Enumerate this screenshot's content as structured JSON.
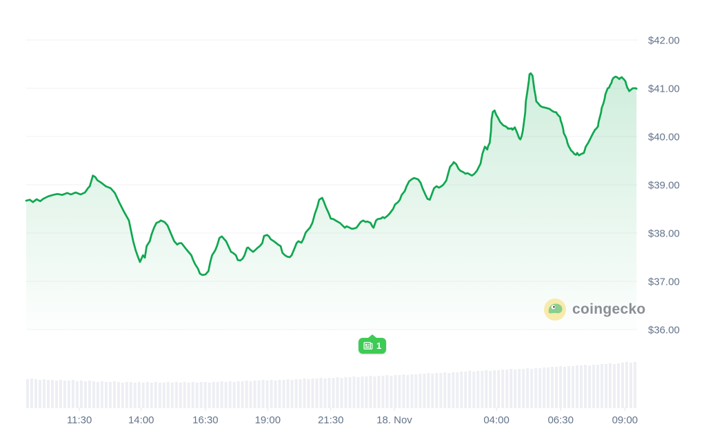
{
  "page": {
    "background": "#ffffff"
  },
  "watermark": {
    "label": "coingecko",
    "icon": "gecko-icon",
    "text_color": "#8b8e96",
    "circle_color": "#f7eaab",
    "gecko_color": "#8bce8d"
  },
  "annotation_badge": {
    "count": "1",
    "icon": "news-icon",
    "color": "#3ecb55"
  },
  "chart_data": {
    "type": "line",
    "subtype": "area",
    "currency": "USD",
    "grid": true,
    "line_color": "#10a750",
    "fill_color_top": "rgba(16,167,80,0.20)",
    "fill_color_bottom": "rgba(16,167,80,0.01)",
    "grid_color": "#f1f2f5",
    "axis_text_color": "#64748b",
    "tick_mark_color": "#e3e6ec",
    "y_axis": {
      "side": "right",
      "range": [
        36,
        42
      ],
      "ticks": [
        {
          "label": "$42.00",
          "value": 42
        },
        {
          "label": "$41.00",
          "value": 41
        },
        {
          "label": "$40.00",
          "value": 40
        },
        {
          "label": "$39.00",
          "value": 39
        },
        {
          "label": "$38.00",
          "value": 38
        },
        {
          "label": "$37.00",
          "value": 37
        },
        {
          "label": "$36.00",
          "value": 36
        }
      ]
    },
    "x_axis": {
      "ticks": [
        {
          "label": "11:30",
          "f": 0.087
        },
        {
          "label": "14:00",
          "f": 0.188
        },
        {
          "label": "16:30",
          "f": 0.293
        },
        {
          "label": "19:00",
          "f": 0.395
        },
        {
          "label": "21:30",
          "f": 0.498
        },
        {
          "label": "18. Nov",
          "f": 0.602
        },
        {
          "label": "04:00",
          "f": 0.769
        },
        {
          "label": "06:30",
          "f": 0.874
        },
        {
          "label": "09:00",
          "f": 0.979
        }
      ]
    },
    "price_series": [
      [
        0.0,
        38.67
      ],
      [
        0.006,
        38.69
      ],
      [
        0.011,
        38.64
      ],
      [
        0.017,
        38.7
      ],
      [
        0.023,
        38.66
      ],
      [
        0.028,
        38.71
      ],
      [
        0.036,
        38.76
      ],
      [
        0.044,
        38.79
      ],
      [
        0.051,
        38.81
      ],
      [
        0.059,
        38.79
      ],
      [
        0.067,
        38.83
      ],
      [
        0.073,
        38.8
      ],
      [
        0.081,
        38.84
      ],
      [
        0.089,
        38.8
      ],
      [
        0.096,
        38.84
      ],
      [
        0.101,
        38.93
      ],
      [
        0.104,
        38.97
      ],
      [
        0.107,
        39.1
      ],
      [
        0.109,
        39.19
      ],
      [
        0.113,
        39.16
      ],
      [
        0.116,
        39.1
      ],
      [
        0.118,
        39.08
      ],
      [
        0.123,
        39.04
      ],
      [
        0.13,
        38.97
      ],
      [
        0.138,
        38.93
      ],
      [
        0.145,
        38.83
      ],
      [
        0.152,
        38.64
      ],
      [
        0.16,
        38.44
      ],
      [
        0.168,
        38.26
      ],
      [
        0.171,
        38.07
      ],
      [
        0.175,
        37.83
      ],
      [
        0.179,
        37.64
      ],
      [
        0.183,
        37.5
      ],
      [
        0.186,
        37.4
      ],
      [
        0.191,
        37.54
      ],
      [
        0.194,
        37.49
      ],
      [
        0.197,
        37.73
      ],
      [
        0.202,
        37.83
      ],
      [
        0.205,
        37.97
      ],
      [
        0.209,
        38.11
      ],
      [
        0.213,
        38.21
      ],
      [
        0.217,
        38.23
      ],
      [
        0.22,
        38.26
      ],
      [
        0.226,
        38.23
      ],
      [
        0.231,
        38.16
      ],
      [
        0.236,
        38.01
      ],
      [
        0.242,
        37.83
      ],
      [
        0.247,
        37.76
      ],
      [
        0.25,
        37.79
      ],
      [
        0.254,
        37.79
      ],
      [
        0.262,
        37.66
      ],
      [
        0.27,
        37.54
      ],
      [
        0.273,
        37.44
      ],
      [
        0.276,
        37.36
      ],
      [
        0.281,
        37.26
      ],
      [
        0.284,
        37.16
      ],
      [
        0.288,
        37.13
      ],
      [
        0.293,
        37.14
      ],
      [
        0.298,
        37.21
      ],
      [
        0.301,
        37.4
      ],
      [
        0.304,
        37.54
      ],
      [
        0.309,
        37.64
      ],
      [
        0.312,
        37.73
      ],
      [
        0.316,
        37.9
      ],
      [
        0.32,
        37.93
      ],
      [
        0.324,
        37.87
      ],
      [
        0.327,
        37.83
      ],
      [
        0.332,
        37.69
      ],
      [
        0.335,
        37.61
      ],
      [
        0.338,
        37.59
      ],
      [
        0.343,
        37.54
      ],
      [
        0.346,
        37.44
      ],
      [
        0.35,
        37.43
      ],
      [
        0.354,
        37.47
      ],
      [
        0.357,
        37.54
      ],
      [
        0.361,
        37.69
      ],
      [
        0.363,
        37.7
      ],
      [
        0.366,
        37.66
      ],
      [
        0.371,
        37.61
      ],
      [
        0.374,
        37.64
      ],
      [
        0.378,
        37.69
      ],
      [
        0.382,
        37.73
      ],
      [
        0.386,
        37.79
      ],
      [
        0.389,
        37.94
      ],
      [
        0.394,
        37.96
      ],
      [
        0.397,
        37.93
      ],
      [
        0.4,
        37.87
      ],
      [
        0.405,
        37.83
      ],
      [
        0.408,
        37.8
      ],
      [
        0.412,
        37.76
      ],
      [
        0.416,
        37.73
      ],
      [
        0.419,
        37.59
      ],
      [
        0.423,
        37.54
      ],
      [
        0.427,
        37.51
      ],
      [
        0.431,
        37.5
      ],
      [
        0.434,
        37.54
      ],
      [
        0.439,
        37.69
      ],
      [
        0.442,
        37.79
      ],
      [
        0.445,
        37.83
      ],
      [
        0.45,
        37.8
      ],
      [
        0.453,
        37.87
      ],
      [
        0.457,
        38.01
      ],
      [
        0.461,
        38.07
      ],
      [
        0.464,
        38.11
      ],
      [
        0.468,
        38.21
      ],
      [
        0.472,
        38.4
      ],
      [
        0.476,
        38.54
      ],
      [
        0.479,
        38.69
      ],
      [
        0.484,
        38.73
      ],
      [
        0.487,
        38.64
      ],
      [
        0.49,
        38.54
      ],
      [
        0.495,
        38.4
      ],
      [
        0.498,
        38.3
      ],
      [
        0.502,
        38.29
      ],
      [
        0.506,
        38.26
      ],
      [
        0.51,
        38.23
      ],
      [
        0.513,
        38.21
      ],
      [
        0.517,
        38.16
      ],
      [
        0.521,
        38.11
      ],
      [
        0.524,
        38.14
      ],
      [
        0.529,
        38.11
      ],
      [
        0.532,
        38.09
      ],
      [
        0.535,
        38.09
      ],
      [
        0.54,
        38.11
      ],
      [
        0.543,
        38.16
      ],
      [
        0.547,
        38.23
      ],
      [
        0.551,
        38.26
      ],
      [
        0.555,
        38.23
      ],
      [
        0.558,
        38.24
      ],
      [
        0.563,
        38.21
      ],
      [
        0.566,
        38.14
      ],
      [
        0.568,
        38.11
      ],
      [
        0.572,
        38.26
      ],
      [
        0.575,
        38.29
      ],
      [
        0.58,
        38.3
      ],
      [
        0.583,
        38.33
      ],
      [
        0.586,
        38.31
      ],
      [
        0.591,
        38.36
      ],
      [
        0.594,
        38.4
      ],
      [
        0.6,
        38.5
      ],
      [
        0.603,
        38.59
      ],
      [
        0.608,
        38.64
      ],
      [
        0.611,
        38.69
      ],
      [
        0.614,
        38.79
      ],
      [
        0.619,
        38.87
      ],
      [
        0.622,
        38.97
      ],
      [
        0.626,
        39.07
      ],
      [
        0.63,
        39.11
      ],
      [
        0.634,
        39.14
      ],
      [
        0.637,
        39.13
      ],
      [
        0.641,
        39.11
      ],
      [
        0.645,
        39.04
      ],
      [
        0.648,
        38.93
      ],
      [
        0.653,
        38.79
      ],
      [
        0.656,
        38.71
      ],
      [
        0.66,
        38.69
      ],
      [
        0.664,
        38.83
      ],
      [
        0.667,
        38.93
      ],
      [
        0.671,
        38.97
      ],
      [
        0.675,
        38.94
      ],
      [
        0.679,
        38.97
      ],
      [
        0.682,
        39.0
      ],
      [
        0.687,
        39.09
      ],
      [
        0.69,
        39.23
      ],
      [
        0.693,
        39.37
      ],
      [
        0.698,
        39.44
      ],
      [
        0.699,
        39.47
      ],
      [
        0.703,
        39.43
      ],
      [
        0.707,
        39.33
      ],
      [
        0.71,
        39.29
      ],
      [
        0.715,
        39.26
      ],
      [
        0.718,
        39.23
      ],
      [
        0.722,
        39.24
      ],
      [
        0.726,
        39.21
      ],
      [
        0.729,
        39.19
      ],
      [
        0.733,
        39.23
      ],
      [
        0.737,
        39.29
      ],
      [
        0.743,
        39.44
      ],
      [
        0.746,
        39.64
      ],
      [
        0.75,
        39.79
      ],
      [
        0.752,
        39.76
      ],
      [
        0.754,
        39.73
      ],
      [
        0.755,
        39.79
      ],
      [
        0.758,
        39.87
      ],
      [
        0.76,
        40.11
      ],
      [
        0.761,
        40.36
      ],
      [
        0.763,
        40.51
      ],
      [
        0.766,
        40.54
      ],
      [
        0.767,
        40.5
      ],
      [
        0.769,
        40.44
      ],
      [
        0.771,
        40.4
      ],
      [
        0.775,
        40.3
      ],
      [
        0.778,
        40.26
      ],
      [
        0.78,
        40.23
      ],
      [
        0.784,
        40.21
      ],
      [
        0.786,
        40.19
      ],
      [
        0.788,
        40.16
      ],
      [
        0.789,
        40.17
      ],
      [
        0.791,
        40.16
      ],
      [
        0.794,
        40.17
      ],
      [
        0.795,
        40.14
      ],
      [
        0.797,
        40.16
      ],
      [
        0.799,
        40.19
      ],
      [
        0.803,
        40.07
      ],
      [
        0.806,
        39.97
      ],
      [
        0.808,
        39.94
      ],
      [
        0.81,
        40.0
      ],
      [
        0.812,
        40.11
      ],
      [
        0.814,
        40.3
      ],
      [
        0.816,
        40.5
      ],
      [
        0.817,
        40.73
      ],
      [
        0.82,
        40.97
      ],
      [
        0.822,
        41.16
      ],
      [
        0.823,
        41.29
      ],
      [
        0.825,
        41.31
      ],
      [
        0.828,
        41.26
      ],
      [
        0.829,
        41.16
      ],
      [
        0.831,
        40.97
      ],
      [
        0.833,
        40.83
      ],
      [
        0.834,
        40.73
      ],
      [
        0.837,
        40.69
      ],
      [
        0.839,
        40.66
      ],
      [
        0.84,
        40.64
      ],
      [
        0.844,
        40.61
      ],
      [
        0.848,
        40.6
      ],
      [
        0.851,
        40.59
      ],
      [
        0.856,
        40.57
      ],
      [
        0.859,
        40.54
      ],
      [
        0.863,
        40.51
      ],
      [
        0.867,
        40.5
      ],
      [
        0.868,
        40.47
      ],
      [
        0.87,
        40.44
      ],
      [
        0.873,
        40.4
      ],
      [
        0.874,
        40.33
      ],
      [
        0.876,
        40.26
      ],
      [
        0.878,
        40.16
      ],
      [
        0.879,
        40.07
      ],
      [
        0.882,
        40.0
      ],
      [
        0.884,
        39.93
      ],
      [
        0.885,
        39.87
      ],
      [
        0.887,
        39.8
      ],
      [
        0.889,
        39.76
      ],
      [
        0.891,
        39.71
      ],
      [
        0.893,
        39.69
      ],
      [
        0.895,
        39.66
      ],
      [
        0.896,
        39.64
      ],
      [
        0.899,
        39.62
      ],
      [
        0.901,
        39.66
      ],
      [
        0.902,
        39.64
      ],
      [
        0.904,
        39.61
      ],
      [
        0.908,
        39.64
      ],
      [
        0.912,
        39.66
      ],
      [
        0.915,
        39.79
      ],
      [
        0.919,
        39.87
      ],
      [
        0.923,
        39.97
      ],
      [
        0.927,
        40.07
      ],
      [
        0.929,
        40.11
      ],
      [
        0.93,
        40.14
      ],
      [
        0.932,
        40.16
      ],
      [
        0.935,
        40.21
      ],
      [
        0.936,
        40.3
      ],
      [
        0.938,
        40.4
      ],
      [
        0.94,
        40.5
      ],
      [
        0.941,
        40.59
      ],
      [
        0.944,
        40.69
      ],
      [
        0.946,
        40.79
      ],
      [
        0.947,
        40.87
      ],
      [
        0.949,
        40.94
      ],
      [
        0.951,
        41.0
      ],
      [
        0.953,
        41.01
      ],
      [
        0.955,
        41.07
      ],
      [
        0.957,
        41.11
      ],
      [
        0.958,
        41.16
      ],
      [
        0.96,
        41.21
      ],
      [
        0.962,
        41.23
      ],
      [
        0.964,
        41.24
      ],
      [
        0.966,
        41.23
      ],
      [
        0.968,
        41.21
      ],
      [
        0.97,
        41.19
      ],
      [
        0.971,
        41.21
      ],
      [
        0.974,
        41.23
      ],
      [
        0.975,
        41.21
      ],
      [
        0.977,
        41.19
      ],
      [
        0.98,
        41.14
      ],
      [
        0.981,
        41.09
      ],
      [
        0.983,
        41.01
      ],
      [
        0.985,
        40.97
      ],
      [
        0.986,
        40.94
      ],
      [
        0.989,
        40.97
      ],
      [
        0.991,
        40.99
      ],
      [
        0.992,
        41.0
      ],
      [
        0.994,
        41.0
      ],
      [
        0.997,
        41.0
      ],
      [
        0.998,
        40.99
      ]
    ],
    "volume": {
      "bar_color": "#edeff4",
      "heights": [
        42,
        43,
        42,
        41,
        42,
        41,
        41,
        40,
        41,
        40,
        40,
        41,
        39,
        40,
        39,
        40,
        39,
        38,
        39,
        38,
        38,
        39,
        38,
        37,
        38,
        38,
        37,
        38,
        37,
        38,
        37,
        38,
        37,
        37,
        38,
        37,
        38,
        37,
        38,
        37,
        38,
        37,
        38,
        38,
        37,
        38,
        38,
        39,
        38,
        39,
        38,
        39,
        39,
        40,
        39,
        40,
        40,
        41,
        40,
        41,
        40,
        41,
        41,
        42,
        41,
        42,
        42,
        43,
        42,
        43,
        43,
        44,
        43,
        44,
        44,
        45,
        44,
        45,
        45,
        46,
        45,
        46,
        46,
        47,
        46,
        47,
        47,
        48,
        47,
        48,
        48,
        49,
        48,
        49,
        49,
        50,
        50,
        51,
        50,
        51,
        51,
        52,
        51,
        52,
        52,
        53,
        53,
        54,
        53,
        54,
        54,
        55,
        54,
        55,
        55,
        56,
        56,
        57,
        56,
        57,
        57,
        58,
        57,
        58,
        58,
        59,
        59,
        60,
        60,
        61,
        60,
        61,
        61,
        62,
        62,
        63,
        62,
        63,
        63,
        64,
        64,
        65,
        64,
        65,
        66,
        67,
        66,
        67
      ]
    }
  }
}
